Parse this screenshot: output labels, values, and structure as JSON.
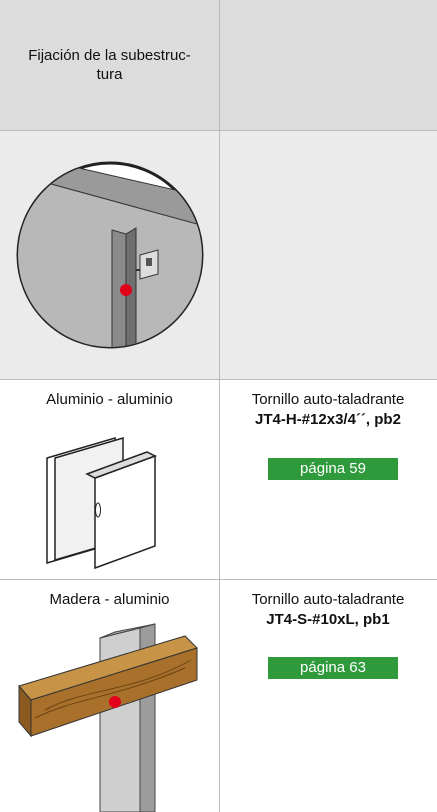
{
  "header": {
    "title_lines": [
      "Fijación de la subestruc-",
      "tura"
    ]
  },
  "rows": [
    {
      "label": "Aluminio - aluminio",
      "description": "Tornillo auto-taladrante",
      "product": "JT4-H-#12x3/4´´, pb2",
      "link": "página 59"
    },
    {
      "label": "Madera - aluminio",
      "description": "Tornillo auto-taladrante",
      "product": "JT4-S-#10xL, pb1",
      "link": "página 63"
    }
  ]
}
